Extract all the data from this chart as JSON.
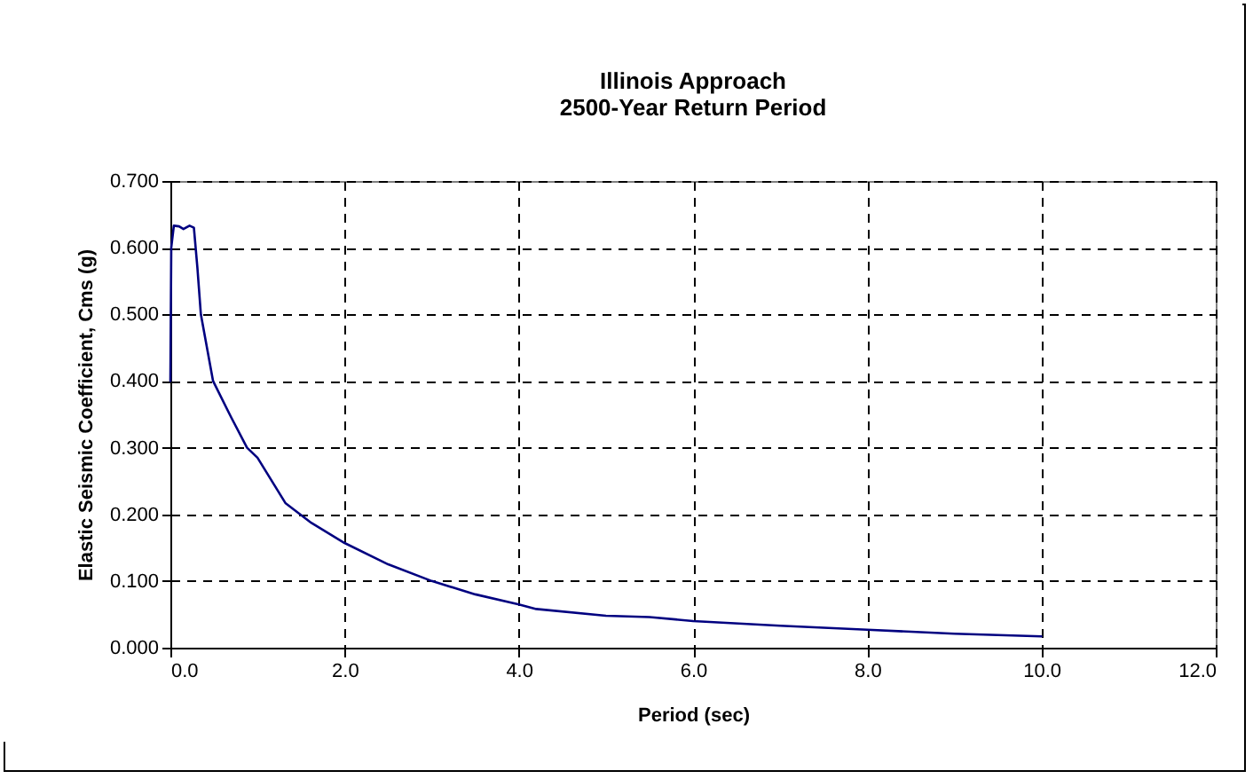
{
  "chart_data": {
    "type": "line",
    "title": [
      "Illinois Approach",
      "2500-Year Return Period"
    ],
    "xlabel": "Period (sec)",
    "ylabel": "Elastic Seismic Coefficient, Cms (g)",
    "x": [
      0,
      0.01,
      0.04,
      0.1,
      0.15,
      0.22,
      0.27,
      0.31,
      0.35,
      0.49,
      0.7,
      0.88,
      1.0,
      1.32,
      1.62,
      2.0,
      2.5,
      3.0,
      3.5,
      4.0,
      4.2,
      5.0,
      5.5,
      6.0,
      7.0,
      8.0,
      9.0,
      10.0
    ],
    "series": [
      {
        "color": "#000080",
        "values": [
          0.4,
          0.6,
          0.633,
          0.632,
          0.628,
          0.633,
          0.63,
          0.57,
          0.5,
          0.4,
          0.345,
          0.3,
          0.285,
          0.217,
          0.187,
          0.157,
          0.125,
          0.1,
          0.08,
          0.065,
          0.058,
          0.048,
          0.046,
          0.04,
          0.033,
          0.027,
          0.021,
          0.017
        ]
      }
    ],
    "xlim": [
      0,
      12
    ],
    "ylim": [
      0,
      0.7
    ],
    "xticks": [
      {
        "value": 0,
        "label": "0.0"
      },
      {
        "value": 2,
        "label": "2.0"
      },
      {
        "value": 4,
        "label": "4.0"
      },
      {
        "value": 6,
        "label": "6.0"
      },
      {
        "value": 8,
        "label": "8.0"
      },
      {
        "value": 10,
        "label": "10.0"
      },
      {
        "value": 12,
        "label": "12.0"
      }
    ],
    "yticks": [
      {
        "value": 0,
        "label": "0.000"
      },
      {
        "value": 0.1,
        "label": "0.100"
      },
      {
        "value": 0.2,
        "label": "0.200"
      },
      {
        "value": 0.3,
        "label": "0.300"
      },
      {
        "value": 0.4,
        "label": "0.400"
      },
      {
        "value": 0.5,
        "label": "0.500"
      },
      {
        "value": 0.6,
        "label": "0.600"
      },
      {
        "value": 0.7,
        "label": "0.700"
      }
    ],
    "grid": true,
    "marker": "none",
    "line_style": "solid"
  }
}
